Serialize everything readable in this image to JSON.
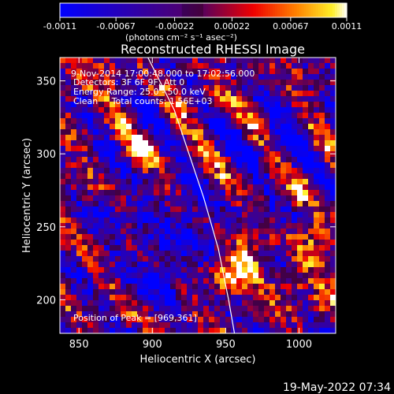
{
  "chart_data": {
    "type": "heatmap",
    "title": "Reconstructed RHESSI Image",
    "xlabel": "Heliocentric X (arcsec)",
    "ylabel": "Heliocentric Y (arcsec)",
    "xlim": [
      837,
      1025
    ],
    "ylim": [
      177,
      366
    ],
    "x_ticks": [
      850,
      900,
      950,
      1000
    ],
    "y_ticks": [
      200,
      250,
      300,
      350
    ],
    "colorbar": {
      "label": "(photons cm⁻² s⁻¹ asec⁻²)",
      "range": [
        -0.0011,
        0.0011
      ],
      "ticks": [
        "-0.0011",
        "-0.00067",
        "-0.00022",
        "0.00022",
        "0.00067",
        "0.0011"
      ]
    },
    "annotations": [
      "9-Nov-2014 17:00:48.000 to 17:02:56.000",
      "Detectors: 3F 6F 9F, Att 0",
      "Energy Range: 25.0 - 50.0 keV",
      "Clean     Total counts: 1.56E+03"
    ],
    "peak_label": "Position of Peak = [969,361]",
    "limb_arc": [
      [
        897,
        366
      ],
      [
        905,
        350
      ],
      [
        915,
        330
      ],
      [
        925,
        300
      ],
      [
        935,
        270
      ],
      [
        945,
        235
      ],
      [
        952,
        200
      ],
      [
        956,
        177
      ]
    ],
    "peak_sources": [
      {
        "x": 962,
        "y": 225,
        "amp": 1.2,
        "sigma": 9
      },
      {
        "x": 952,
        "y": 212,
        "amp": 0.9,
        "sigma": 7
      },
      {
        "x": 1012,
        "y": 245,
        "amp": 0.8,
        "sigma": 8
      },
      {
        "x": 1002,
        "y": 212,
        "amp": 0.7,
        "sigma": 8
      },
      {
        "x": 1018,
        "y": 200,
        "amp": 0.6,
        "sigma": 6
      },
      {
        "x": 845,
        "y": 340,
        "amp": 0.6,
        "sigma": 6
      },
      {
        "x": 893,
        "y": 303,
        "amp": 0.6,
        "sigma": 7
      },
      {
        "x": 940,
        "y": 342,
        "amp": 0.5,
        "sigma": 6
      },
      {
        "x": 870,
        "y": 358,
        "amp": 0.6,
        "sigma": 6
      },
      {
        "x": 1000,
        "y": 275,
        "amp": 0.5,
        "sigma": 6
      }
    ],
    "cold_regions": [
      {
        "x": 920,
        "y": 250,
        "amp": -0.55,
        "sigma": 18
      },
      {
        "x": 905,
        "y": 215,
        "amp": -0.45,
        "sigma": 14
      },
      {
        "x": 985,
        "y": 310,
        "amp": -0.4,
        "sigma": 16
      },
      {
        "x": 870,
        "y": 255,
        "amp": -0.35,
        "sigma": 12
      }
    ],
    "texture_amplitude": 0.55,
    "colors": {
      "background": "#000000",
      "cmap_min": "#0000ff",
      "cmap_mid": "#000000",
      "cmap_max": "#ffffff",
      "limb_line": "#ffffff"
    }
  },
  "footer": {
    "timestamp": "19-May-2022 07:34"
  }
}
